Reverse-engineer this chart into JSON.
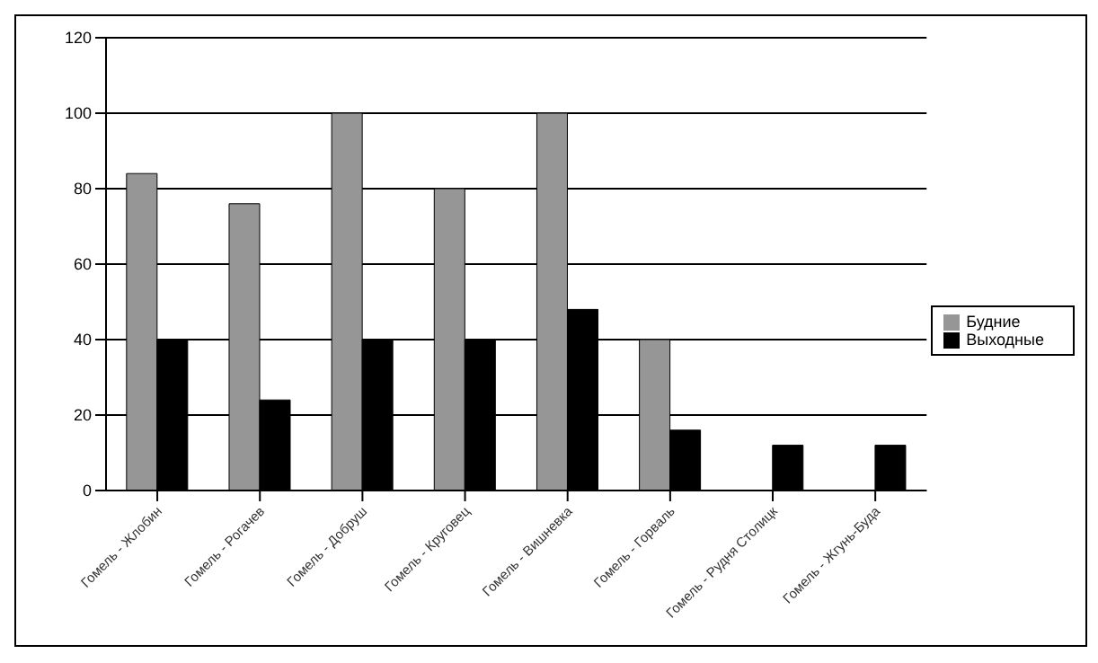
{
  "chart_data": {
    "type": "bar",
    "categories": [
      "Гомель - Жлобин",
      "Гомель - Рогачев",
      "Гомель - Добруш",
      "Гомель - Круговец",
      "Гомель - Вишневка",
      "Гомель - Горваль",
      "Гомель - Рудня Столицк",
      "Гомель - Жгунь-Буда"
    ],
    "series": [
      {
        "name": "Будние",
        "color": "#969696",
        "values": [
          84,
          76,
          100,
          80,
          100,
          40,
          null,
          null
        ]
      },
      {
        "name": "Выходные",
        "color": "#000000",
        "values": [
          40,
          24,
          40,
          40,
          48,
          16,
          12,
          12
        ]
      }
    ],
    "ylim": [
      0,
      120
    ],
    "yticks": [
      0,
      20,
      40,
      60,
      80,
      100,
      120
    ],
    "grid": "y",
    "legend": "right"
  }
}
